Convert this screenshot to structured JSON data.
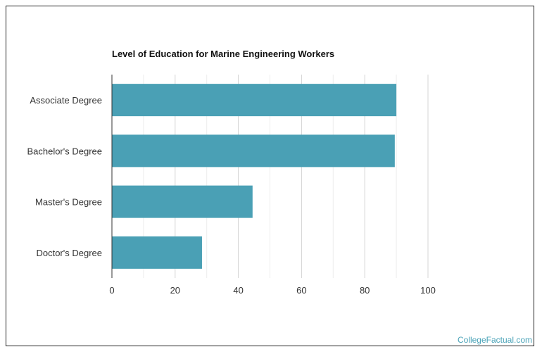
{
  "watermark": "CollegeFactual.com",
  "colors": {
    "bar": "#4aa0b5",
    "grid_major": "#d4d4d4",
    "grid_minor": "#ececec",
    "axis": "#333333"
  },
  "chart_data": {
    "type": "bar",
    "orientation": "horizontal",
    "title": "Level of Education for Marine Engineering Workers",
    "xlabel": "",
    "ylabel": "",
    "categories": [
      "Associate Degree",
      "Bachelor's Degree",
      "Master's Degree",
      "Doctor's Degree"
    ],
    "values": [
      90,
      89.5,
      44.5,
      28.5
    ],
    "xlim": [
      0,
      100
    ],
    "xticks": [
      "0",
      "20",
      "40",
      "60",
      "80",
      "100"
    ],
    "grid": true,
    "legend": "none"
  }
}
